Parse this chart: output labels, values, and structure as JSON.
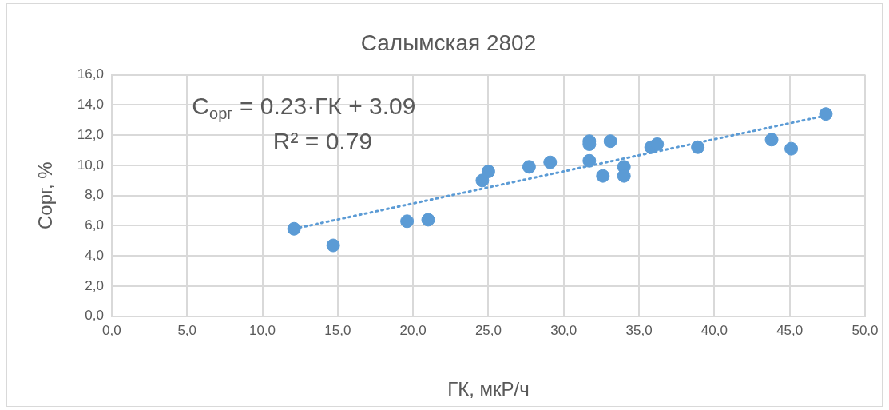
{
  "chart_data": {
    "type": "scatter",
    "title": "Салымская 2802",
    "xlabel": "ГК, мкР/ч",
    "ylabel": "Сорг, %",
    "xlim": [
      0,
      50
    ],
    "ylim": [
      0,
      16
    ],
    "xticks": [
      {
        "value": 0,
        "label": "0,0"
      },
      {
        "value": 5,
        "label": "5,0"
      },
      {
        "value": 10,
        "label": "10,0"
      },
      {
        "value": 15,
        "label": "15,0"
      },
      {
        "value": 20,
        "label": "20,0"
      },
      {
        "value": 25,
        "label": "25,0"
      },
      {
        "value": 30,
        "label": "30,0"
      },
      {
        "value": 35,
        "label": "35,0"
      },
      {
        "value": 40,
        "label": "40,0"
      },
      {
        "value": 45,
        "label": "45,0"
      },
      {
        "value": 50,
        "label": "50,0"
      }
    ],
    "yticks": [
      {
        "value": 0,
        "label": "0,0"
      },
      {
        "value": 2,
        "label": "2,0"
      },
      {
        "value": 4,
        "label": "4,0"
      },
      {
        "value": 6,
        "label": "6,0"
      },
      {
        "value": 8,
        "label": "8,0"
      },
      {
        "value": 10,
        "label": "10,0"
      },
      {
        "value": 12,
        "label": "12,0"
      },
      {
        "value": 14,
        "label": "14,0"
      },
      {
        "value": 16,
        "label": "16,0"
      }
    ],
    "grid": true,
    "legend": false,
    "marker": "circle",
    "series": [
      {
        "color": "#5b9bd5",
        "x": [
          12.1,
          14.7,
          19.6,
          21.0,
          24.6,
          25.0,
          27.7,
          29.1,
          31.7,
          31.7,
          31.7,
          32.6,
          33.1,
          34.0,
          34.0,
          35.8,
          36.2,
          38.9,
          43.8,
          45.1,
          47.4
        ],
        "values": [
          5.8,
          4.7,
          6.3,
          6.4,
          9.0,
          9.6,
          9.9,
          10.2,
          11.6,
          11.4,
          10.3,
          9.3,
          11.6,
          9.9,
          9.3,
          11.2,
          11.4,
          11.2,
          11.7,
          11.1,
          13.4
        ]
      },
      {
        "type": "line",
        "color": "#5b9bd5",
        "line_style": "dotted",
        "marker": "none",
        "x": [
          12.1,
          47.4
        ],
        "values": [
          5.8,
          13.3
        ]
      }
    ],
    "annotations": [
      "C$_{орг}$ = 0.23·ГК + 3.09",
      "R² = 0.79"
    ]
  }
}
